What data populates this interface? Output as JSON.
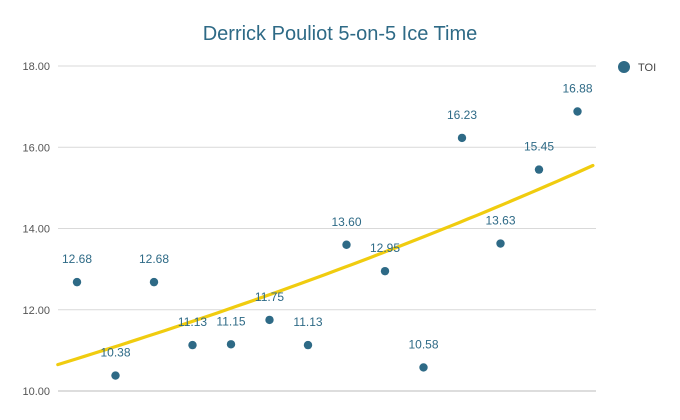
{
  "chart_data": {
    "type": "scatter",
    "title": "Derrick Pouliot 5-on-5 Ice Time",
    "xlabel": "",
    "ylabel": "",
    "ylim": [
      10,
      18
    ],
    "yticks": [
      "10.00",
      "12.00",
      "14.00",
      "16.00",
      "18.00"
    ],
    "grid": true,
    "legend": {
      "position": "right",
      "entries": [
        "TOI"
      ]
    },
    "series": [
      {
        "name": "TOI",
        "color": "#2e6a86",
        "x": [
          1,
          2,
          3,
          4,
          5,
          6,
          7,
          8,
          9,
          10,
          11,
          12,
          13,
          14
        ],
        "y": [
          12.68,
          10.38,
          12.68,
          11.13,
          11.15,
          11.75,
          11.13,
          13.6,
          12.95,
          10.58,
          16.23,
          13.63,
          15.45,
          16.88
        ],
        "labels": [
          "12.68",
          "10.38",
          "12.68",
          "11.13",
          "11.15",
          "11.75",
          "11.13",
          "13.60",
          "12.95",
          "10.58",
          "16.23",
          "13.63",
          "15.45",
          "16.88"
        ]
      }
    ],
    "trendline": {
      "type": "exponential",
      "color": "#f0cc0f",
      "x_start": 0.5,
      "x_end": 14.4,
      "y_start": 10.65,
      "y_end": 15.55
    }
  }
}
